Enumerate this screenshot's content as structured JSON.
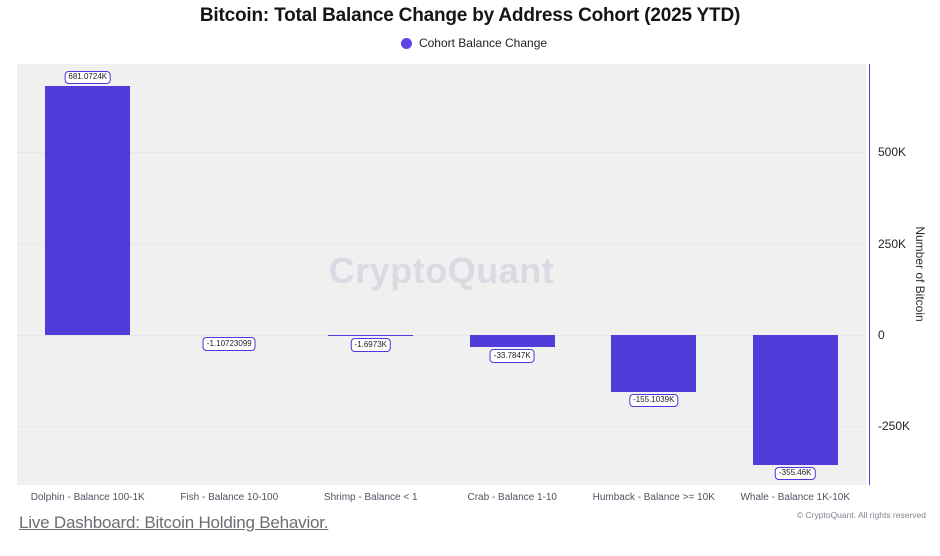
{
  "title": "Bitcoin: Total Balance Change by Address Cohort (2025 YTD)",
  "legend": {
    "label": "Cohort Balance Change",
    "color": "#5b44e8"
  },
  "watermark": "CryptoQuant",
  "chart_data": {
    "type": "bar",
    "title": "Bitcoin: Total Balance Change by Address Cohort (2025 YTD)",
    "series_name": "Cohort Balance Change",
    "categories": [
      "Dolphin - Balance 100-1K",
      "Fish - Balance 10-100",
      "Shrimp - Balance < 1",
      "Crab - Balance 1-10",
      "Humback - Balance >= 10K",
      "Whale - Balance 1K-10K"
    ],
    "values_thousands": [
      681.0724,
      -0.00110723099,
      -1.6973,
      -33.7847,
      -155.1039,
      -355.46
    ],
    "value_labels": [
      "681.0724K",
      "-1.10723099",
      "-1.6973K",
      "-33.7847K",
      "-155.1039K",
      "-355.46K"
    ],
    "xlabel": "",
    "ylabel": "Number of Bitcoin",
    "yticks": [
      {
        "value_thousands": 500,
        "label": "500K"
      },
      {
        "value_thousands": 250,
        "label": "250K"
      },
      {
        "value_thousands": 0,
        "label": "0"
      },
      {
        "value_thousands": -250,
        "label": "-250K"
      }
    ],
    "ylim_thousands": [
      -410,
      742
    ],
    "grid": true,
    "legend_position": "top",
    "bar_color": "#4f3cd9",
    "axis_color": "#5443e6"
  },
  "footer": {
    "link_label": "Live Dashboard: Bitcoin Holding Behavior.",
    "copyright": "© CryptoQuant. All rights reserved"
  },
  "colors": {
    "plot_background": "#f0f0f0",
    "gridline": "#e7e7eb",
    "watermark": "#dadae3",
    "value_box_border": "#4c38df"
  }
}
